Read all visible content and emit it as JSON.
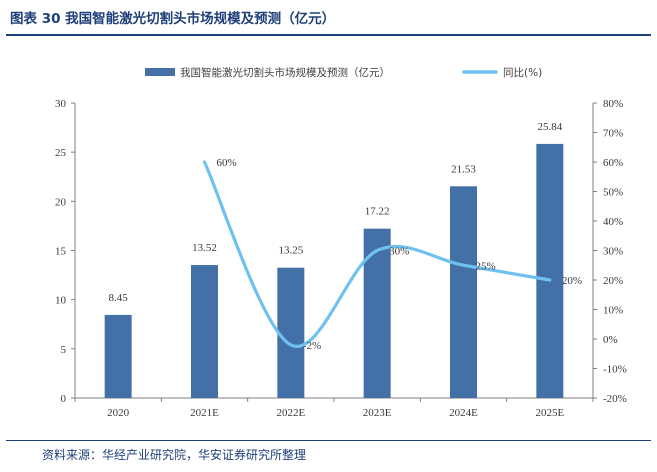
{
  "title": "图表 30 我国智能激光切割头市场规模及预测（亿元）",
  "source": "资料来源：华经产业研究院，华安证券研究所整理",
  "colors": {
    "bar": "#4470a8",
    "line": "#6fc2ef",
    "title": "#1f3f7a"
  },
  "chart_data": {
    "type": "bar",
    "categories": [
      "2020",
      "2021E",
      "2022E",
      "2023E",
      "2024E",
      "2025E"
    ],
    "series": [
      {
        "name": "我国智能激光切割头市场规模及预测（亿元）",
        "type": "bar",
        "axis": "left",
        "values": [
          8.45,
          13.52,
          13.25,
          17.22,
          21.53,
          25.84
        ],
        "labels": [
          "8.45",
          "13.52",
          "13.25",
          "17.22",
          "21.53",
          "25.84"
        ]
      },
      {
        "name": "同比(%)",
        "type": "line",
        "axis": "right",
        "smooth": true,
        "values": [
          null,
          60,
          -2,
          30,
          25,
          20
        ],
        "labels": [
          "",
          "60%",
          "-2%",
          "30%",
          "25%",
          "20%"
        ]
      }
    ],
    "y_left": {
      "ylim": [
        0,
        30
      ],
      "ticks": [
        "0",
        "5",
        "10",
        "15",
        "20",
        "25",
        "30"
      ],
      "tick_values": [
        0,
        5,
        10,
        15,
        20,
        25,
        30
      ]
    },
    "y_right": {
      "ylim": [
        -20,
        80
      ],
      "ticks": [
        "-20%",
        "-10%",
        "0%",
        "10%",
        "20%",
        "30%",
        "40%",
        "50%",
        "60%",
        "70%",
        "80%"
      ],
      "tick_values": [
        -20,
        -10,
        0,
        10,
        20,
        30,
        40,
        50,
        60,
        70,
        80
      ]
    },
    "legend": "top-center",
    "grid": false
  }
}
